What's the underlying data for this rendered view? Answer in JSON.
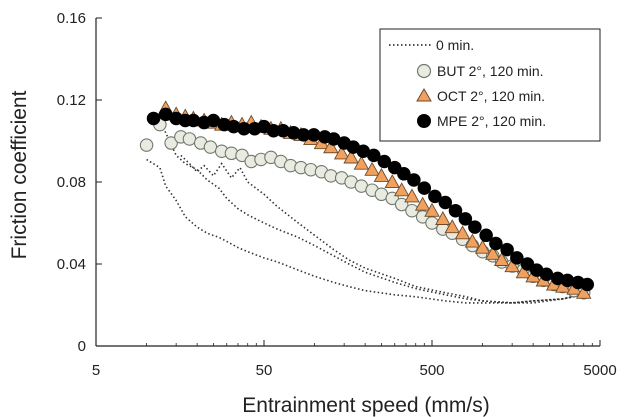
{
  "chart_data": {
    "type": "scatter",
    "x_scale": "log",
    "xlim": [
      5,
      5000
    ],
    "ylim": [
      0,
      0.16
    ],
    "xticks": [
      5,
      50,
      500,
      5000
    ],
    "xtick_labels": [
      "5",
      "50",
      "500",
      "5000"
    ],
    "yticks": [
      0,
      0.04,
      0.08,
      0.12,
      0.16
    ],
    "ytick_labels": [
      "0",
      "0.04",
      "0.08",
      "0.12",
      "0.16"
    ],
    "xlabel": "Entrainment speed (mm/s)",
    "ylabel": "Friction coefficient",
    "grid": false,
    "legend_position": "top-right",
    "series": [
      {
        "name": "0 min.",
        "style": "dotted-line",
        "color": "#333333",
        "lines": [
          {
            "x": [
              10,
              12,
              13,
              15,
              17,
              20,
              23,
              27,
              30,
              35,
              40,
              50,
              60,
              80,
              100,
              130,
              160,
              200,
              300,
              400,
              600,
              800,
              1000,
              1500,
              2000,
              3000,
              4000
            ],
            "y": [
              0.091,
              0.087,
              0.078,
              0.071,
              0.063,
              0.058,
              0.055,
              0.053,
              0.051,
              0.048,
              0.046,
              0.043,
              0.041,
              0.037,
              0.034,
              0.031,
              0.029,
              0.027,
              0.025,
              0.024,
              0.022,
              0.021,
              0.021,
              0.021,
              0.022,
              0.023,
              0.025
            ]
          },
          {
            "x": [
              12,
              13,
              15,
              17,
              20,
              23,
              27,
              30,
              35,
              40,
              50,
              60,
              80,
              100,
              130,
              160,
              200,
              300,
              400,
              600,
              800,
              1000,
              1500,
              2000,
              3000,
              4000
            ],
            "y": [
              0.11,
              0.104,
              0.093,
              0.089,
              0.086,
              0.081,
              0.077,
              0.072,
              0.067,
              0.064,
              0.06,
              0.057,
              0.053,
              0.049,
              0.044,
              0.04,
              0.036,
              0.031,
              0.028,
              0.025,
              0.023,
              0.022,
              0.021,
              0.022,
              0.023,
              0.025
            ]
          },
          {
            "x": [
              16,
              18,
              20,
              22,
              25,
              28,
              32,
              36,
              40,
              50,
              60,
              80,
              100,
              130,
              160,
              200,
              300,
              400,
              600,
              800,
              1000,
              1500,
              2000,
              3000,
              4000
            ],
            "y": [
              0.093,
              0.089,
              0.085,
              0.088,
              0.083,
              0.089,
              0.082,
              0.087,
              0.08,
              0.074,
              0.068,
              0.06,
              0.054,
              0.047,
              0.042,
              0.038,
              0.033,
              0.029,
              0.026,
              0.024,
              0.022,
              0.021,
              0.021,
              0.023,
              0.026
            ]
          }
        ]
      },
      {
        "name": "BUT 2°, 120 min.",
        "marker": "circle",
        "color": "#e9ebe3",
        "stroke": "#6f7a6a",
        "x": [
          10,
          12,
          14,
          16,
          18,
          21,
          24,
          28,
          32,
          37,
          42,
          48,
          55,
          63,
          72,
          83,
          95,
          110,
          125,
          145,
          165,
          190,
          220,
          250,
          290,
          330,
          380,
          440,
          500,
          580,
          660,
          760,
          870,
          1000,
          1150,
          1300,
          1500,
          1750,
          2000,
          2300,
          2650,
          3000,
          3500,
          4000
        ],
        "y": [
          0.098,
          0.108,
          0.099,
          0.102,
          0.101,
          0.099,
          0.097,
          0.095,
          0.094,
          0.093,
          0.09,
          0.091,
          0.092,
          0.09,
          0.088,
          0.087,
          0.086,
          0.085,
          0.083,
          0.082,
          0.08,
          0.078,
          0.076,
          0.074,
          0.072,
          0.069,
          0.066,
          0.063,
          0.06,
          0.057,
          0.055,
          0.052,
          0.049,
          0.046,
          0.044,
          0.041,
          0.039,
          0.037,
          0.034,
          0.032,
          0.03,
          0.029,
          0.027,
          0.026
        ]
      },
      {
        "name": "OCT 2°, 120 min.",
        "marker": "triangle",
        "color": "#f0a15f",
        "stroke": "#6e4a2a",
        "x": [
          13,
          15,
          17,
          19,
          22,
          25,
          28,
          32,
          37,
          42,
          48,
          55,
          63,
          72,
          83,
          95,
          110,
          125,
          145,
          165,
          190,
          220,
          250,
          290,
          330,
          380,
          440,
          500,
          580,
          660,
          760,
          870,
          1000,
          1150,
          1300,
          1500,
          1750,
          2000,
          2300,
          2650,
          3000,
          3500,
          4000
        ],
        "y": [
          0.116,
          0.113,
          0.112,
          0.111,
          0.11,
          0.109,
          0.108,
          0.109,
          0.108,
          0.109,
          0.107,
          0.106,
          0.106,
          0.104,
          0.103,
          0.101,
          0.099,
          0.097,
          0.094,
          0.092,
          0.089,
          0.086,
          0.083,
          0.08,
          0.076,
          0.073,
          0.069,
          0.066,
          0.062,
          0.058,
          0.055,
          0.051,
          0.048,
          0.045,
          0.042,
          0.039,
          0.036,
          0.034,
          0.032,
          0.03,
          0.029,
          0.028,
          0.026
        ]
      },
      {
        "name": "MPE 2°, 120 min.",
        "marker": "circle",
        "color": "#000000",
        "stroke": "#000000",
        "x": [
          11,
          13,
          15,
          17,
          19,
          22,
          25,
          29,
          33,
          38,
          44,
          50,
          57,
          65,
          75,
          86,
          99,
          115,
          130,
          150,
          170,
          195,
          225,
          260,
          300,
          340,
          390,
          450,
          520,
          600,
          690,
          790,
          900,
          1050,
          1200,
          1400,
          1600,
          1850,
          2100,
          2400,
          2800,
          3200,
          3700,
          4200
        ],
        "y": [
          0.111,
          0.113,
          0.111,
          0.11,
          0.11,
          0.109,
          0.11,
          0.108,
          0.107,
          0.106,
          0.106,
          0.107,
          0.105,
          0.105,
          0.104,
          0.103,
          0.103,
          0.102,
          0.101,
          0.099,
          0.097,
          0.095,
          0.093,
          0.09,
          0.087,
          0.084,
          0.081,
          0.077,
          0.073,
          0.07,
          0.066,
          0.062,
          0.058,
          0.054,
          0.05,
          0.047,
          0.043,
          0.04,
          0.037,
          0.035,
          0.033,
          0.032,
          0.031,
          0.03
        ]
      }
    ]
  }
}
